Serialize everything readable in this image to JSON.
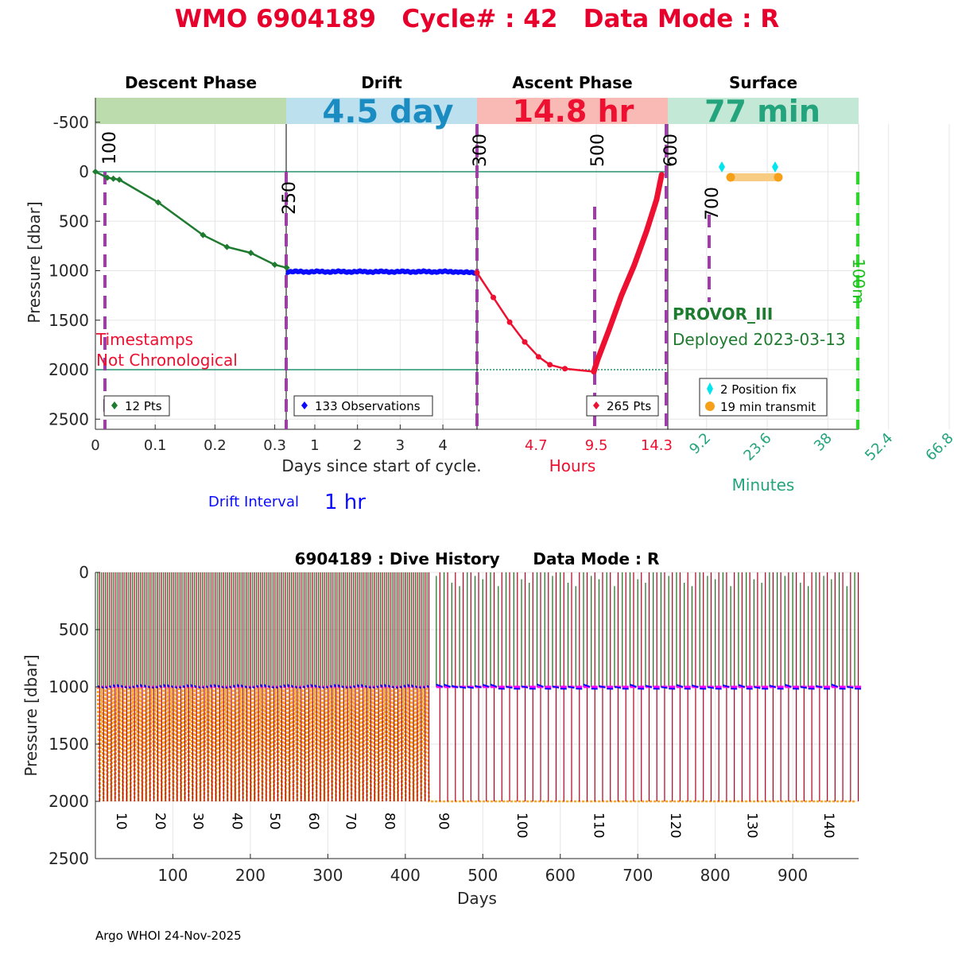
{
  "colors": {
    "title_red": "#e8002d",
    "descent_green": "#1e7b2f",
    "drift_blue": "#0a0aff",
    "ascent_red": "#ee1030",
    "surface_teal": "#23a47c",
    "phase_purple": "#9b3ea5",
    "descent_band": "#bcdcae",
    "drift_band": "#bde0ee",
    "ascent_band": "#f9b9b5",
    "surface_band": "#c4e8d6",
    "drift_text": "#1a8cc1",
    "gps_cyan": "#00e5ee",
    "transmit_orange": "#f6a01a",
    "hist_green": "#1a6b1a",
    "hist_red": "#b00020",
    "hist_magenta": "#ff00ff",
    "hist_orange": "#f6a623",
    "bright_green": "#20e020"
  },
  "title": {
    "text": "WMO 6904189   Cycle# : 42   Data Mode : R"
  },
  "top_panel": {
    "phases": [
      {
        "name": "Descent Phase",
        "band_text": ""
      },
      {
        "name": "Drift",
        "band_text": "4.5 day"
      },
      {
        "name": "Ascent Phase",
        "band_text": "14.8 hr"
      },
      {
        "name": "Surface",
        "band_text": "77 min"
      }
    ],
    "ylabel": "Pressure [dbar]",
    "yticks": [
      "-500",
      "0",
      "500",
      "1000",
      "1500",
      "2000",
      "2500"
    ],
    "descent_xticks": [
      "0",
      "0.1",
      "0.2",
      "0.3"
    ],
    "drift_xticks": [
      "1",
      "2",
      "3",
      "4"
    ],
    "ascent_xticks": [
      "4.7",
      "9.5",
      "14.3"
    ],
    "surface_xticks": [
      "9.2",
      "23.6",
      "38",
      "52.4",
      "66.8"
    ],
    "xlabel_days": "Days since start of cycle.",
    "xlabel_hours": "Hours",
    "xlabel_minutes": "Minutes",
    "drift_interval_label": "Drift Interval",
    "drift_interval_value": "1 hr",
    "marker_labels": [
      "100",
      "250",
      "300",
      "500",
      "600",
      "700",
      "100m"
    ],
    "warning_line1": "Timestamps",
    "warning_line2": "Not Chronological",
    "float_type": "PROVOR_III",
    "deployed": "Deployed 2023-03-13",
    "legend_descent": "12 Pts",
    "legend_drift": "133 Observations",
    "legend_ascent": "265 Pts",
    "legend_gps": "2 Position fix",
    "legend_transmit": "19 min transmit"
  },
  "chart_data": [
    {
      "type": "line",
      "title": "WMO 6904189   Cycle# : 42   Data Mode : R",
      "ylabel": "Pressure [dbar]",
      "ylim": [
        -600,
        2600
      ],
      "series": [
        {
          "name": "Descent (12 Pts)",
          "xlabel": "Days since start of cycle.",
          "xlim": [
            0,
            0.33
          ],
          "x": [
            0.0,
            0.02,
            0.03,
            0.04,
            0.105,
            0.18,
            0.22,
            0.26,
            0.3,
            0.32
          ],
          "y": [
            0,
            60,
            70,
            80,
            310,
            640,
            760,
            820,
            940,
            970
          ]
        },
        {
          "name": "Drift (133 Observations)",
          "xlabel": "Days since start of cycle.",
          "xlim": [
            0.33,
            4.8
          ],
          "x_start_day": 0.33,
          "x_end_day": 4.8,
          "count": 133,
          "y_mean": 1010,
          "y_range": [
            995,
            1030
          ]
        },
        {
          "name": "Ascent (265 Pts)",
          "xlabel": "Hours",
          "xlim": [
            0,
            14.8
          ],
          "x": [
            0.0,
            1.3,
            2.6,
            3.8,
            4.9,
            5.8,
            7.0,
            9.3,
            9.6,
            10.5,
            11.5,
            12.5,
            13.5,
            14.3,
            14.7
          ],
          "y": [
            1020,
            1270,
            1520,
            1720,
            1870,
            1950,
            1990,
            2020,
            1900,
            1600,
            1250,
            950,
            600,
            280,
            30
          ]
        },
        {
          "name": "Surface position fix (2 Position fix)",
          "xlabel": "Minutes",
          "x": [
            13,
            56
          ],
          "y": [
            -50,
            -50
          ]
        },
        {
          "name": "Surface transmit (19 min transmit)",
          "xlabel": "Minutes",
          "x": [
            16.5,
            57.5
          ],
          "y": [
            50,
            50
          ]
        }
      ],
      "reference_lines_dbar": [
        0,
        2000
      ]
    },
    {
      "type": "line",
      "title": "6904189 : Dive History      Data Mode : R",
      "xlabel": "Days",
      "ylabel": "Pressure [dbar]",
      "xlim": [
        0,
        985
      ],
      "ylim": [
        0,
        2500
      ],
      "xticks": [
        "100",
        "200",
        "300",
        "400",
        "500",
        "600",
        "700",
        "800",
        "900"
      ],
      "yticks": [
        "0",
        "500",
        "1000",
        "1500",
        "2000",
        "2500"
      ],
      "cycle_labels": [
        "10",
        "20",
        "30",
        "40",
        "50",
        "60",
        "70",
        "80",
        "90",
        "100",
        "110",
        "120",
        "130",
        "140"
      ],
      "cycle_label_days": [
        34,
        84,
        133,
        183,
        232,
        282,
        330,
        380,
        450,
        551,
        650,
        749,
        848,
        947
      ],
      "cycles": 145,
      "frequent_cycle_until_day": 430,
      "frequent_cycle_interval_days": 5,
      "long_cycle_interval_days": 10,
      "drift_pressure_dbar": 1000,
      "profile_pressure_dbar": 2000,
      "series": [
        {
          "name": "Descent",
          "color": "green"
        },
        {
          "name": "Drift",
          "color": "blue"
        },
        {
          "name": "Ascent",
          "color": "red"
        },
        {
          "name": "Park target",
          "color": "magenta"
        },
        {
          "name": "Profile depth",
          "color": "orange"
        }
      ]
    }
  ],
  "bottom_panel": {
    "title": "6904189 : Dive History      Data Mode : R",
    "xlabel": "Days",
    "ylabel": "Pressure [dbar]",
    "xticks": [
      "100",
      "200",
      "300",
      "400",
      "500",
      "600",
      "700",
      "800",
      "900"
    ],
    "yticks": [
      "0",
      "500",
      "1000",
      "1500",
      "2000",
      "2500"
    ],
    "cycle_labels": [
      "10",
      "20",
      "30",
      "40",
      "50",
      "60",
      "70",
      "80",
      "90",
      "100",
      "110",
      "120",
      "130",
      "140"
    ]
  },
  "footer": "Argo WHOI 24-Nov-2025"
}
